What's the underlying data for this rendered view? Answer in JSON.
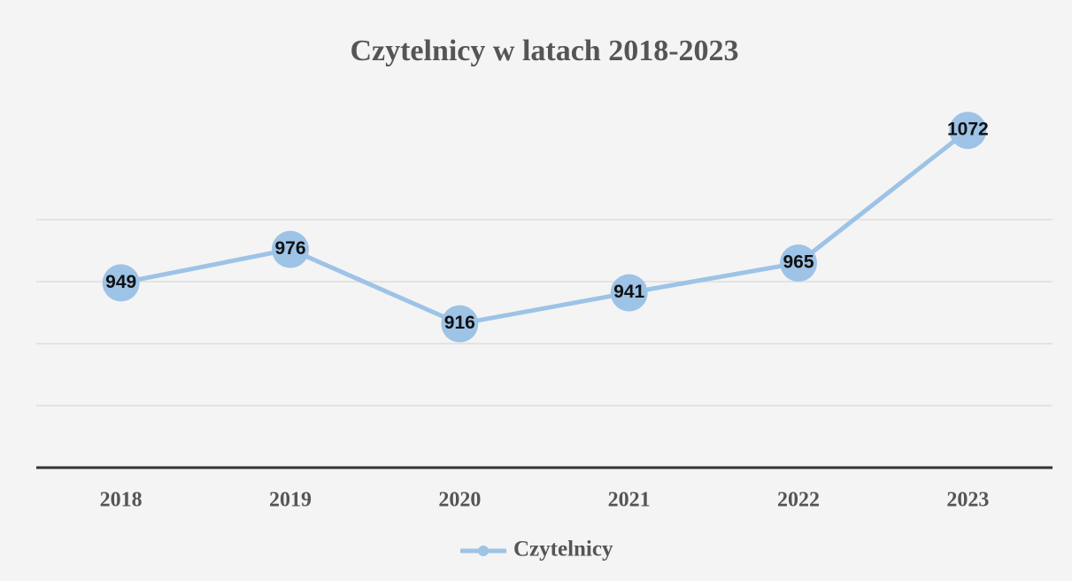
{
  "chart_data": {
    "type": "line",
    "title": "Czytelnicy w latach 2018-2023",
    "categories": [
      "2018",
      "2019",
      "2020",
      "2021",
      "2022",
      "2023"
    ],
    "series": [
      {
        "name": "Czytelnicy",
        "color": "#9dc3e6",
        "values": [
          949,
          976,
          916,
          941,
          965,
          1072
        ]
      }
    ],
    "ylim": [
      800,
      1100
    ]
  }
}
